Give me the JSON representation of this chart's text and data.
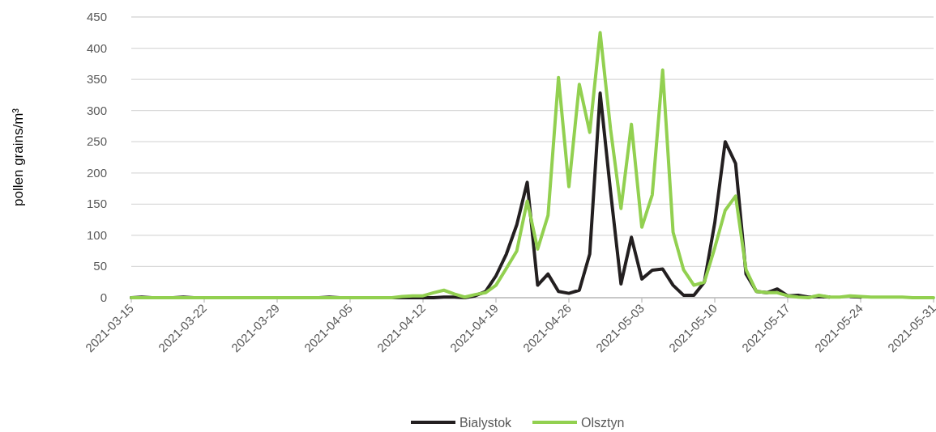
{
  "chart_data": {
    "type": "line",
    "ylabel": "pollen grains/m³",
    "x": [
      "2021-03-15",
      "2021-03-16",
      "2021-03-17",
      "2021-03-18",
      "2021-03-19",
      "2021-03-20",
      "2021-03-21",
      "2021-03-22",
      "2021-03-23",
      "2021-03-24",
      "2021-03-25",
      "2021-03-26",
      "2021-03-27",
      "2021-03-28",
      "2021-03-29",
      "2021-03-30",
      "2021-03-31",
      "2021-04-01",
      "2021-04-02",
      "2021-04-03",
      "2021-04-04",
      "2021-04-05",
      "2021-04-06",
      "2021-04-07",
      "2021-04-08",
      "2021-04-09",
      "2021-04-10",
      "2021-04-11",
      "2021-04-12",
      "2021-04-13",
      "2021-04-14",
      "2021-04-15",
      "2021-04-16",
      "2021-04-17",
      "2021-04-18",
      "2021-04-19",
      "2021-04-20",
      "2021-04-21",
      "2021-04-22",
      "2021-04-23",
      "2021-04-24",
      "2021-04-25",
      "2021-04-26",
      "2021-04-27",
      "2021-04-28",
      "2021-04-29",
      "2021-04-30",
      "2021-05-01",
      "2021-05-02",
      "2021-05-03",
      "2021-05-04",
      "2021-05-05",
      "2021-05-06",
      "2021-05-07",
      "2021-05-08",
      "2021-05-09",
      "2021-05-10",
      "2021-05-11",
      "2021-05-12",
      "2021-05-13",
      "2021-05-14",
      "2021-05-15",
      "2021-05-16",
      "2021-05-17",
      "2021-05-18",
      "2021-05-19",
      "2021-05-20",
      "2021-05-21",
      "2021-05-22",
      "2021-05-23",
      "2021-05-24",
      "2021-05-25",
      "2021-05-26",
      "2021-05-27",
      "2021-05-28",
      "2021-05-29",
      "2021-05-30",
      "2021-05-31"
    ],
    "series": [
      {
        "name": "Bialystok",
        "color": "#231f20",
        "values": [
          0,
          1,
          0,
          0,
          0,
          1,
          0,
          0,
          0,
          0,
          0,
          0,
          0,
          0,
          0,
          0,
          0,
          0,
          0,
          1,
          0,
          0,
          0,
          0,
          0,
          0,
          0,
          0,
          0,
          0,
          1,
          1,
          0,
          3,
          10,
          35,
          70,
          117,
          185,
          20,
          38,
          10,
          7,
          12,
          70,
          328,
          170,
          22,
          97,
          30,
          44,
          46,
          20,
          4,
          4,
          25,
          120,
          250,
          215,
          38,
          10,
          8,
          14,
          3,
          4,
          1,
          2,
          1,
          null,
          2,
          1,
          null,
          null,
          null,
          null,
          null,
          null,
          null
        ]
      },
      {
        "name": "Olsztyn",
        "color": "#92d050",
        "values": [
          0,
          0,
          0,
          0,
          0,
          0,
          0,
          0,
          0,
          0,
          0,
          0,
          0,
          0,
          0,
          0,
          0,
          0,
          0,
          0,
          0,
          0,
          0,
          0,
          0,
          0,
          2,
          3,
          3,
          8,
          12,
          6,
          1,
          5,
          8,
          20,
          47,
          75,
          155,
          78,
          132,
          353,
          178,
          342,
          265,
          425,
          270,
          143,
          278,
          113,
          165,
          365,
          105,
          45,
          20,
          25,
          80,
          140,
          163,
          45,
          10,
          8,
          8,
          3,
          1,
          0,
          4,
          1,
          1,
          3,
          2,
          1,
          1,
          1,
          1,
          0,
          0,
          0
        ]
      }
    ],
    "xlim": [
      "2021-03-15",
      "2021-05-31"
    ],
    "xticks": [
      "2021-03-15",
      "2021-03-22",
      "2021-03-29",
      "2021-04-05",
      "2021-04-12",
      "2021-04-19",
      "2021-04-26",
      "2021-05-03",
      "2021-05-10",
      "2021-05-17",
      "2021-05-24",
      "2021-05-31"
    ],
    "ylim": [
      0,
      450
    ],
    "yticks": [
      0,
      50,
      100,
      150,
      200,
      250,
      300,
      350,
      400,
      450
    ],
    "grid": "y",
    "legend": "bottom",
    "marker": "none",
    "line_style": "solid"
  }
}
